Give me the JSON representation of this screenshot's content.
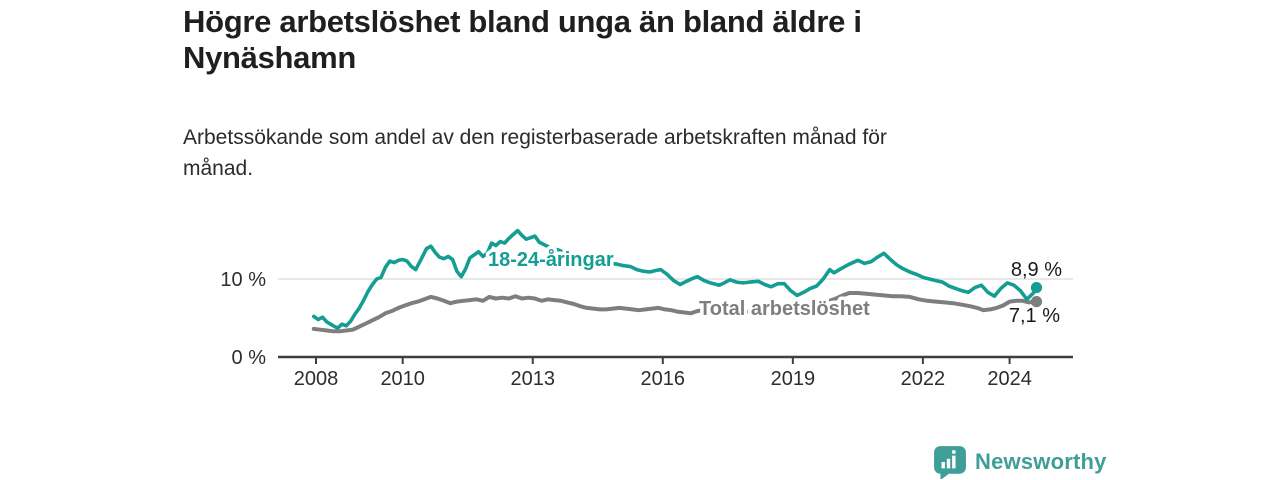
{
  "header": {
    "title": "Högre arbetslöshet bland unga än bland äldre i\nNynäshamn",
    "subtitle": "Arbetssökande som andel av den registerbaserade arbetskraften månad för\nmånad."
  },
  "footer": {
    "brand": "Newsworthy"
  },
  "colors": {
    "youth": "#149e93",
    "total": "#7e7e7e",
    "axis": "#3f3f3f",
    "grid": "#d9d9d9",
    "brand": "#3f9e97"
  },
  "chart_data": {
    "type": "line",
    "title": "Högre arbetslöshet bland unga än bland äldre i Nynäshamn",
    "subtitle": "Arbetssökande som andel av den registerbaserade arbetskraften månad för månad.",
    "unit": "%",
    "grid": "horizontal gridline at 10 % only",
    "legend": "inline labels on lines",
    "x_axis": {
      "label": "",
      "range": [
        2007.9,
        2025.5
      ],
      "ticks": [
        2008,
        2010,
        2013,
        2016,
        2019,
        2022,
        2024
      ]
    },
    "y_axis": {
      "label": "",
      "range": [
        0,
        17.5
      ],
      "ticks": [
        {
          "value": 0,
          "label": "0 %"
        },
        {
          "value": 10,
          "label": "10 %"
        }
      ]
    },
    "series": [
      {
        "name": "18-24-åringar",
        "color": "#149e93",
        "end_label": "8,9 %",
        "end_value": 8.9,
        "points": [
          [
            2007.95,
            5.2
          ],
          [
            2008.05,
            4.8
          ],
          [
            2008.15,
            5.1
          ],
          [
            2008.25,
            4.5
          ],
          [
            2008.4,
            4.0
          ],
          [
            2008.5,
            3.7
          ],
          [
            2008.6,
            4.2
          ],
          [
            2008.7,
            4.0
          ],
          [
            2008.8,
            4.6
          ],
          [
            2008.9,
            5.5
          ],
          [
            2009.0,
            6.3
          ],
          [
            2009.1,
            7.3
          ],
          [
            2009.2,
            8.4
          ],
          [
            2009.3,
            9.3
          ],
          [
            2009.4,
            10.0
          ],
          [
            2009.5,
            10.2
          ],
          [
            2009.6,
            11.5
          ],
          [
            2009.7,
            12.3
          ],
          [
            2009.8,
            12.1
          ],
          [
            2009.9,
            12.4
          ],
          [
            2010.0,
            12.5
          ],
          [
            2010.1,
            12.3
          ],
          [
            2010.2,
            11.6
          ],
          [
            2010.3,
            11.2
          ],
          [
            2010.45,
            12.8
          ],
          [
            2010.55,
            13.9
          ],
          [
            2010.65,
            14.2
          ],
          [
            2010.75,
            13.4
          ],
          [
            2010.85,
            12.8
          ],
          [
            2010.95,
            12.6
          ],
          [
            2011.05,
            12.9
          ],
          [
            2011.15,
            12.5
          ],
          [
            2011.25,
            11.0
          ],
          [
            2011.35,
            10.3
          ],
          [
            2011.45,
            11.3
          ],
          [
            2011.55,
            12.7
          ],
          [
            2011.65,
            13.1
          ],
          [
            2011.75,
            13.5
          ],
          [
            2011.85,
            12.9
          ],
          [
            2011.95,
            13.3
          ],
          [
            2012.05,
            14.6
          ],
          [
            2012.15,
            14.3
          ],
          [
            2012.25,
            14.8
          ],
          [
            2012.35,
            14.6
          ],
          [
            2012.45,
            15.2
          ],
          [
            2012.55,
            15.7
          ],
          [
            2012.65,
            16.2
          ],
          [
            2012.75,
            15.6
          ],
          [
            2012.85,
            15.1
          ],
          [
            2012.95,
            15.3
          ],
          [
            2013.05,
            15.5
          ],
          [
            2013.15,
            14.7
          ],
          [
            2013.3,
            14.3
          ],
          [
            2013.45,
            13.9
          ],
          [
            2013.6,
            13.7
          ],
          [
            2013.75,
            13.3
          ],
          [
            2013.9,
            12.9
          ],
          [
            2014.05,
            12.5
          ],
          [
            2014.2,
            11.6
          ],
          [
            2014.35,
            11.9
          ],
          [
            2014.5,
            12.1
          ],
          [
            2014.65,
            11.8
          ],
          [
            2014.8,
            12.0
          ],
          [
            2014.95,
            11.9
          ],
          [
            2015.1,
            11.7
          ],
          [
            2015.25,
            11.6
          ],
          [
            2015.4,
            11.2
          ],
          [
            2015.55,
            11.0
          ],
          [
            2015.7,
            10.9
          ],
          [
            2015.85,
            11.1
          ],
          [
            2015.95,
            11.2
          ],
          [
            2016.1,
            10.6
          ],
          [
            2016.25,
            9.8
          ],
          [
            2016.4,
            9.3
          ],
          [
            2016.55,
            9.7
          ],
          [
            2016.7,
            10.1
          ],
          [
            2016.8,
            10.3
          ],
          [
            2016.95,
            9.8
          ],
          [
            2017.1,
            9.5
          ],
          [
            2017.3,
            9.2
          ],
          [
            2017.45,
            9.6
          ],
          [
            2017.55,
            9.9
          ],
          [
            2017.7,
            9.6
          ],
          [
            2017.85,
            9.5
          ],
          [
            2018.0,
            9.6
          ],
          [
            2018.2,
            9.7
          ],
          [
            2018.35,
            9.3
          ],
          [
            2018.5,
            9.0
          ],
          [
            2018.65,
            9.4
          ],
          [
            2018.8,
            9.4
          ],
          [
            2018.95,
            8.5
          ],
          [
            2019.1,
            7.9
          ],
          [
            2019.25,
            8.3
          ],
          [
            2019.4,
            8.8
          ],
          [
            2019.55,
            9.1
          ],
          [
            2019.7,
            10.0
          ],
          [
            2019.85,
            11.2
          ],
          [
            2019.95,
            10.8
          ],
          [
            2020.1,
            11.3
          ],
          [
            2020.3,
            11.9
          ],
          [
            2020.5,
            12.4
          ],
          [
            2020.65,
            12.0
          ],
          [
            2020.8,
            12.2
          ],
          [
            2020.95,
            12.8
          ],
          [
            2021.1,
            13.3
          ],
          [
            2021.25,
            12.5
          ],
          [
            2021.4,
            11.8
          ],
          [
            2021.55,
            11.3
          ],
          [
            2021.7,
            10.9
          ],
          [
            2021.85,
            10.6
          ],
          [
            2022.0,
            10.2
          ],
          [
            2022.15,
            10.0
          ],
          [
            2022.3,
            9.8
          ],
          [
            2022.45,
            9.6
          ],
          [
            2022.6,
            9.1
          ],
          [
            2022.75,
            8.8
          ],
          [
            2022.9,
            8.5
          ],
          [
            2023.05,
            8.3
          ],
          [
            2023.2,
            8.9
          ],
          [
            2023.35,
            9.2
          ],
          [
            2023.5,
            8.3
          ],
          [
            2023.65,
            7.8
          ],
          [
            2023.8,
            8.8
          ],
          [
            2023.95,
            9.5
          ],
          [
            2024.1,
            9.2
          ],
          [
            2024.25,
            8.5
          ],
          [
            2024.4,
            7.4
          ],
          [
            2024.55,
            8.2
          ],
          [
            2024.62,
            8.9
          ]
        ]
      },
      {
        "name": "Total arbetslöshet",
        "color": "#7e7e7e",
        "end_label": "7,1 %",
        "end_value": 7.1,
        "points": [
          [
            2007.95,
            3.6
          ],
          [
            2008.1,
            3.5
          ],
          [
            2008.25,
            3.4
          ],
          [
            2008.4,
            3.3
          ],
          [
            2008.55,
            3.3
          ],
          [
            2008.7,
            3.4
          ],
          [
            2008.85,
            3.5
          ],
          [
            2009.0,
            3.9
          ],
          [
            2009.15,
            4.3
          ],
          [
            2009.3,
            4.7
          ],
          [
            2009.45,
            5.1
          ],
          [
            2009.6,
            5.6
          ],
          [
            2009.75,
            5.9
          ],
          [
            2009.9,
            6.3
          ],
          [
            2010.05,
            6.6
          ],
          [
            2010.2,
            6.9
          ],
          [
            2010.35,
            7.1
          ],
          [
            2010.5,
            7.4
          ],
          [
            2010.65,
            7.7
          ],
          [
            2010.8,
            7.5
          ],
          [
            2010.95,
            7.2
          ],
          [
            2011.1,
            6.9
          ],
          [
            2011.25,
            7.1
          ],
          [
            2011.4,
            7.2
          ],
          [
            2011.55,
            7.3
          ],
          [
            2011.7,
            7.4
          ],
          [
            2011.85,
            7.2
          ],
          [
            2012.0,
            7.7
          ],
          [
            2012.15,
            7.5
          ],
          [
            2012.3,
            7.6
          ],
          [
            2012.45,
            7.5
          ],
          [
            2012.6,
            7.8
          ],
          [
            2012.75,
            7.5
          ],
          [
            2012.9,
            7.6
          ],
          [
            2013.05,
            7.5
          ],
          [
            2013.2,
            7.2
          ],
          [
            2013.35,
            7.4
          ],
          [
            2013.5,
            7.3
          ],
          [
            2013.65,
            7.2
          ],
          [
            2013.8,
            7.0
          ],
          [
            2013.95,
            6.8
          ],
          [
            2014.1,
            6.5
          ],
          [
            2014.25,
            6.3
          ],
          [
            2014.4,
            6.2
          ],
          [
            2014.55,
            6.1
          ],
          [
            2014.7,
            6.1
          ],
          [
            2014.85,
            6.2
          ],
          [
            2015.0,
            6.3
          ],
          [
            2015.15,
            6.2
          ],
          [
            2015.3,
            6.1
          ],
          [
            2015.45,
            6.0
          ],
          [
            2015.6,
            6.1
          ],
          [
            2015.75,
            6.2
          ],
          [
            2015.9,
            6.3
          ],
          [
            2016.05,
            6.1
          ],
          [
            2016.2,
            6.0
          ],
          [
            2016.35,
            5.8
          ],
          [
            2016.5,
            5.7
          ],
          [
            2016.65,
            5.6
          ],
          [
            2016.8,
            5.9
          ],
          [
            2016.95,
            6.0
          ],
          [
            2017.15,
            5.9
          ],
          [
            2017.35,
            5.8
          ],
          [
            2017.55,
            5.8
          ],
          [
            2017.75,
            5.9
          ],
          [
            2017.95,
            5.8
          ],
          [
            2018.15,
            5.9
          ],
          [
            2018.35,
            6.0
          ],
          [
            2018.55,
            6.0
          ],
          [
            2018.75,
            6.1
          ],
          [
            2018.95,
            6.2
          ],
          [
            2019.15,
            6.3
          ],
          [
            2019.35,
            6.5
          ],
          [
            2019.55,
            6.8
          ],
          [
            2019.75,
            7.0
          ],
          [
            2019.95,
            7.4
          ],
          [
            2020.15,
            7.9
          ],
          [
            2020.3,
            8.2
          ],
          [
            2020.5,
            8.2
          ],
          [
            2020.7,
            8.1
          ],
          [
            2020.9,
            8.0
          ],
          [
            2021.1,
            7.9
          ],
          [
            2021.3,
            7.8
          ],
          [
            2021.5,
            7.8
          ],
          [
            2021.7,
            7.7
          ],
          [
            2021.9,
            7.4
          ],
          [
            2022.1,
            7.2
          ],
          [
            2022.3,
            7.1
          ],
          [
            2022.5,
            7.0
          ],
          [
            2022.7,
            6.9
          ],
          [
            2022.9,
            6.7
          ],
          [
            2023.1,
            6.5
          ],
          [
            2023.25,
            6.3
          ],
          [
            2023.4,
            6.0
          ],
          [
            2023.55,
            6.1
          ],
          [
            2023.7,
            6.3
          ],
          [
            2023.85,
            6.6
          ],
          [
            2024.0,
            7.1
          ],
          [
            2024.15,
            7.2
          ],
          [
            2024.3,
            7.2
          ],
          [
            2024.45,
            7.0
          ],
          [
            2024.62,
            7.1
          ]
        ]
      }
    ]
  }
}
